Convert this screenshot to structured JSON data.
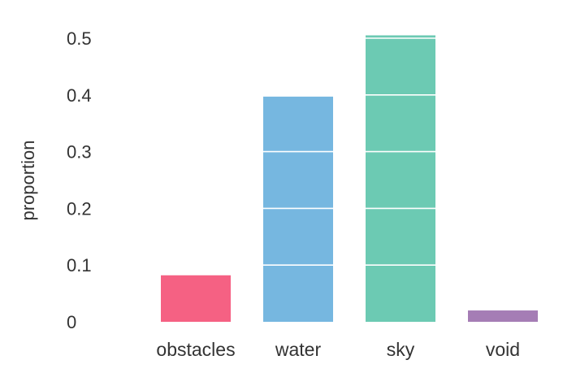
{
  "chart_data": {
    "type": "bar",
    "categories": [
      "obstacles",
      "water",
      "sky",
      "void"
    ],
    "values": [
      0.082,
      0.397,
      0.505,
      0.02
    ],
    "colors": [
      "#f56183",
      "#76b7e0",
      "#6ccab3",
      "#a57db5"
    ],
    "xlabel": "",
    "ylabel": "proportion",
    "ylim": [
      0,
      0.5
    ],
    "yticks": [
      0,
      0.1,
      0.2,
      0.3,
      0.4,
      0.5
    ],
    "ytick_labels": [
      "0",
      "0.1",
      "0.2",
      "0.3",
      "0.4",
      "0.5"
    ],
    "grid": "horizontal white lines over bars",
    "legend": "none"
  }
}
